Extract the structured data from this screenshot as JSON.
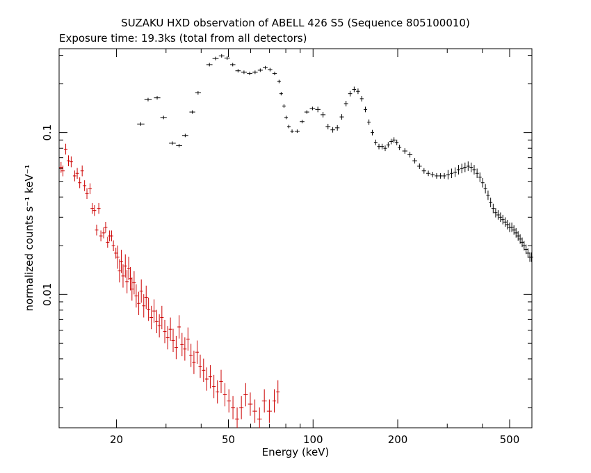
{
  "chart_data": {
    "type": "scatter",
    "title": "SUZAKU HXD observation of ABELL 426 S5 (Sequence 805100010)",
    "subtitle": "Exposure time: 19.3ks (total from all detectors)",
    "xlabel": "Energy (keV)",
    "ylabel": "normalized counts s⁻¹ keV⁻¹",
    "x_scale": "log",
    "y_scale": "log",
    "xlim": [
      12.5,
      600
    ],
    "ylim": [
      0.0015,
      0.33
    ],
    "x_ticks": [
      {
        "v": 20,
        "label": "20"
      },
      {
        "v": 50,
        "label": "50"
      },
      {
        "v": 100,
        "label": "100"
      },
      {
        "v": 200,
        "label": "200"
      },
      {
        "v": 500,
        "label": "500"
      }
    ],
    "y_ticks": [
      {
        "v": 0.1,
        "label": "0.1"
      },
      {
        "v": 0.01,
        "label": "0.01"
      }
    ],
    "grid": false,
    "colors": {
      "series_1": "#000000",
      "series_2": "#cc0000"
    },
    "series": [
      {
        "color": "#000000",
        "points": [
          {
            "x": 24.4,
            "y": 0.113
          },
          {
            "x": 25.9,
            "y": 0.16
          },
          {
            "x": 27.9,
            "y": 0.164
          },
          {
            "x": 29.4,
            "y": 0.124
          },
          {
            "x": 31.6,
            "y": 0.086
          },
          {
            "x": 33.4,
            "y": 0.083
          },
          {
            "x": 35.1,
            "y": 0.096
          },
          {
            "x": 37.2,
            "y": 0.134
          },
          {
            "x": 39.0,
            "y": 0.176
          },
          {
            "x": 42.8,
            "y": 0.263
          },
          {
            "x": 45.0,
            "y": 0.287
          },
          {
            "x": 47.3,
            "y": 0.298
          },
          {
            "x": 49.5,
            "y": 0.289
          },
          {
            "x": 51.8,
            "y": 0.263
          },
          {
            "x": 54.1,
            "y": 0.241
          },
          {
            "x": 56.8,
            "y": 0.236
          },
          {
            "x": 59.5,
            "y": 0.232
          },
          {
            "x": 62.2,
            "y": 0.236
          },
          {
            "x": 64.9,
            "y": 0.243
          },
          {
            "x": 67.6,
            "y": 0.252
          },
          {
            "x": 70.3,
            "y": 0.245
          },
          {
            "x": 73.0,
            "y": 0.232
          },
          {
            "x": 75.7,
            "y": 0.207
          },
          {
            "x": 77.0,
            "y": 0.174
          },
          {
            "x": 78.8,
            "y": 0.146
          },
          {
            "x": 80.2,
            "y": 0.124
          },
          {
            "x": 82.0,
            "y": 0.109
          },
          {
            "x": 84.2,
            "y": 0.102
          },
          {
            "x": 87.8,
            "y": 0.102
          },
          {
            "x": 91.4,
            "y": 0.117
          },
          {
            "x": 95.0,
            "y": 0.134
          },
          {
            "x": 99.5,
            "y": 0.141
          },
          {
            "x": 104.0,
            "y": 0.139
          },
          {
            "x": 108.5,
            "y": 0.129
          },
          {
            "x": 113.0,
            "y": 0.109
          },
          {
            "x": 117.5,
            "y": 0.104
          },
          {
            "x": 122.0,
            "y": 0.107
          },
          {
            "x": 126.5,
            "y": 0.125
          },
          {
            "x": 131.0,
            "y": 0.151
          },
          {
            "x": 135.5,
            "y": 0.174
          },
          {
            "x": 140.0,
            "y": 0.185
          },
          {
            "x": 144.5,
            "y": 0.18
          },
          {
            "x": 149.0,
            "y": 0.162
          },
          {
            "x": 153.5,
            "y": 0.139
          },
          {
            "x": 158.0,
            "y": 0.116
          },
          {
            "x": 162.5,
            "y": 0.1
          },
          {
            "x": 167.0,
            "y": 0.087
          },
          {
            "x": 171.5,
            "y": 0.082
          },
          {
            "x": 176.0,
            "y": 0.082
          },
          {
            "x": 180.5,
            "y": 0.08
          },
          {
            "x": 185.0,
            "y": 0.084
          },
          {
            "x": 189.5,
            "y": 0.088
          },
          {
            "x": 194.0,
            "y": 0.09
          },
          {
            "x": 198.5,
            "y": 0.087
          },
          {
            "x": 203.0,
            "y": 0.081
          },
          {
            "x": 212.0,
            "y": 0.077
          },
          {
            "x": 221.0,
            "y": 0.073
          },
          {
            "x": 230.0,
            "y": 0.067
          },
          {
            "x": 239.0,
            "y": 0.062
          },
          {
            "x": 248.0,
            "y": 0.058
          },
          {
            "x": 257.0,
            "y": 0.056
          },
          {
            "x": 266.0,
            "y": 0.055
          },
          {
            "x": 275.0,
            "y": 0.054
          },
          {
            "x": 284.0,
            "y": 0.054
          },
          {
            "x": 293.0,
            "y": 0.054
          },
          {
            "x": 302.0,
            "y": 0.055
          },
          {
            "x": 311.0,
            "y": 0.056
          },
          {
            "x": 320.0,
            "y": 0.057
          },
          {
            "x": 329.0,
            "y": 0.059
          },
          {
            "x": 338.0,
            "y": 0.06
          },
          {
            "x": 347.0,
            "y": 0.061
          },
          {
            "x": 356.0,
            "y": 0.062
          },
          {
            "x": 365.0,
            "y": 0.061
          },
          {
            "x": 374.0,
            "y": 0.059
          },
          {
            "x": 383.0,
            "y": 0.056
          },
          {
            "x": 392.0,
            "y": 0.053
          },
          {
            "x": 401.0,
            "y": 0.049
          },
          {
            "x": 410.0,
            "y": 0.045
          },
          {
            "x": 419.0,
            "y": 0.041
          },
          {
            "x": 428.0,
            "y": 0.037
          },
          {
            "x": 437.0,
            "y": 0.034
          },
          {
            "x": 446.0,
            "y": 0.032
          },
          {
            "x": 455.0,
            "y": 0.031
          },
          {
            "x": 464.0,
            "y": 0.03
          },
          {
            "x": 473.0,
            "y": 0.029
          },
          {
            "x": 482.0,
            "y": 0.028
          },
          {
            "x": 491.0,
            "y": 0.027
          },
          {
            "x": 500.0,
            "y": 0.026
          },
          {
            "x": 509.0,
            "y": 0.026
          },
          {
            "x": 518.0,
            "y": 0.025
          },
          {
            "x": 527.0,
            "y": 0.024
          },
          {
            "x": 536.0,
            "y": 0.023
          },
          {
            "x": 545.0,
            "y": 0.022
          },
          {
            "x": 554.0,
            "y": 0.021
          },
          {
            "x": 563.0,
            "y": 0.02
          },
          {
            "x": 572.0,
            "y": 0.019
          },
          {
            "x": 581.0,
            "y": 0.018
          },
          {
            "x": 590.0,
            "y": 0.017
          },
          {
            "x": 598.0,
            "y": 0.017
          }
        ]
      },
      {
        "color": "#cc0000",
        "points": [
          {
            "x": 12.7,
            "y": 0.061
          },
          {
            "x": 12.9,
            "y": 0.058
          },
          {
            "x": 13.2,
            "y": 0.079
          },
          {
            "x": 13.5,
            "y": 0.067
          },
          {
            "x": 13.8,
            "y": 0.066
          },
          {
            "x": 14.2,
            "y": 0.054
          },
          {
            "x": 14.5,
            "y": 0.056
          },
          {
            "x": 14.8,
            "y": 0.049
          },
          {
            "x": 15.1,
            "y": 0.058
          },
          {
            "x": 15.4,
            "y": 0.047
          },
          {
            "x": 15.7,
            "y": 0.042
          },
          {
            "x": 16.1,
            "y": 0.045
          },
          {
            "x": 16.4,
            "y": 0.034
          },
          {
            "x": 16.7,
            "y": 0.033
          },
          {
            "x": 17.0,
            "y": 0.025
          },
          {
            "x": 17.3,
            "y": 0.034
          },
          {
            "x": 17.6,
            "y": 0.023
          },
          {
            "x": 18.0,
            "y": 0.024
          },
          {
            "x": 18.3,
            "y": 0.026
          },
          {
            "x": 18.6,
            "y": 0.021
          },
          {
            "x": 18.9,
            "y": 0.023
          },
          {
            "x": 19.2,
            "y": 0.023
          },
          {
            "x": 19.5,
            "y": 0.02
          },
          {
            "x": 19.9,
            "y": 0.018
          },
          {
            "x": 20.2,
            "y": 0.017
          },
          {
            "x": 20.5,
            "y": 0.014
          },
          {
            "x": 20.8,
            "y": 0.016
          },
          {
            "x": 21.1,
            "y": 0.013
          },
          {
            "x": 21.5,
            "y": 0.015
          },
          {
            "x": 21.8,
            "y": 0.012
          },
          {
            "x": 22.1,
            "y": 0.0145
          },
          {
            "x": 22.4,
            "y": 0.0125
          },
          {
            "x": 22.7,
            "y": 0.0108
          },
          {
            "x": 23.1,
            "y": 0.0118
          },
          {
            "x": 23.5,
            "y": 0.0098
          },
          {
            "x": 24.0,
            "y": 0.0088
          },
          {
            "x": 24.5,
            "y": 0.0105
          },
          {
            "x": 25.0,
            "y": 0.0085
          },
          {
            "x": 25.5,
            "y": 0.0096
          },
          {
            "x": 26.0,
            "y": 0.0081
          },
          {
            "x": 26.6,
            "y": 0.0072
          },
          {
            "x": 27.2,
            "y": 0.0079
          },
          {
            "x": 27.8,
            "y": 0.0068
          },
          {
            "x": 28.4,
            "y": 0.0064
          },
          {
            "x": 29.0,
            "y": 0.0072
          },
          {
            "x": 29.7,
            "y": 0.0059
          },
          {
            "x": 30.4,
            "y": 0.0054
          },
          {
            "x": 31.1,
            "y": 0.0061
          },
          {
            "x": 31.8,
            "y": 0.0052
          },
          {
            "x": 32.6,
            "y": 0.0047
          },
          {
            "x": 33.4,
            "y": 0.0063
          },
          {
            "x": 34.2,
            "y": 0.0049
          },
          {
            "x": 35.0,
            "y": 0.0046
          },
          {
            "x": 35.9,
            "y": 0.0053
          },
          {
            "x": 36.8,
            "y": 0.0042
          },
          {
            "x": 37.7,
            "y": 0.0038
          },
          {
            "x": 38.7,
            "y": 0.0044
          },
          {
            "x": 39.7,
            "y": 0.0036
          },
          {
            "x": 40.8,
            "y": 0.0034
          },
          {
            "x": 41.9,
            "y": 0.003
          },
          {
            "x": 43.1,
            "y": 0.0031
          },
          {
            "x": 44.4,
            "y": 0.0027
          },
          {
            "x": 45.7,
            "y": 0.0025
          },
          {
            "x": 47.1,
            "y": 0.0029
          },
          {
            "x": 48.6,
            "y": 0.0024
          },
          {
            "x": 50.2,
            "y": 0.0022
          },
          {
            "x": 51.9,
            "y": 0.002
          },
          {
            "x": 53.7,
            "y": 0.0017
          },
          {
            "x": 55.6,
            "y": 0.002
          },
          {
            "x": 57.6,
            "y": 0.0024
          },
          {
            "x": 59.8,
            "y": 0.0021
          },
          {
            "x": 62.1,
            "y": 0.0019
          },
          {
            "x": 64.5,
            "y": 0.0017
          },
          {
            "x": 67.1,
            "y": 0.0022
          },
          {
            "x": 69.9,
            "y": 0.0019
          },
          {
            "x": 72.8,
            "y": 0.0022
          },
          {
            "x": 75.0,
            "y": 0.0025
          }
        ]
      }
    ]
  }
}
